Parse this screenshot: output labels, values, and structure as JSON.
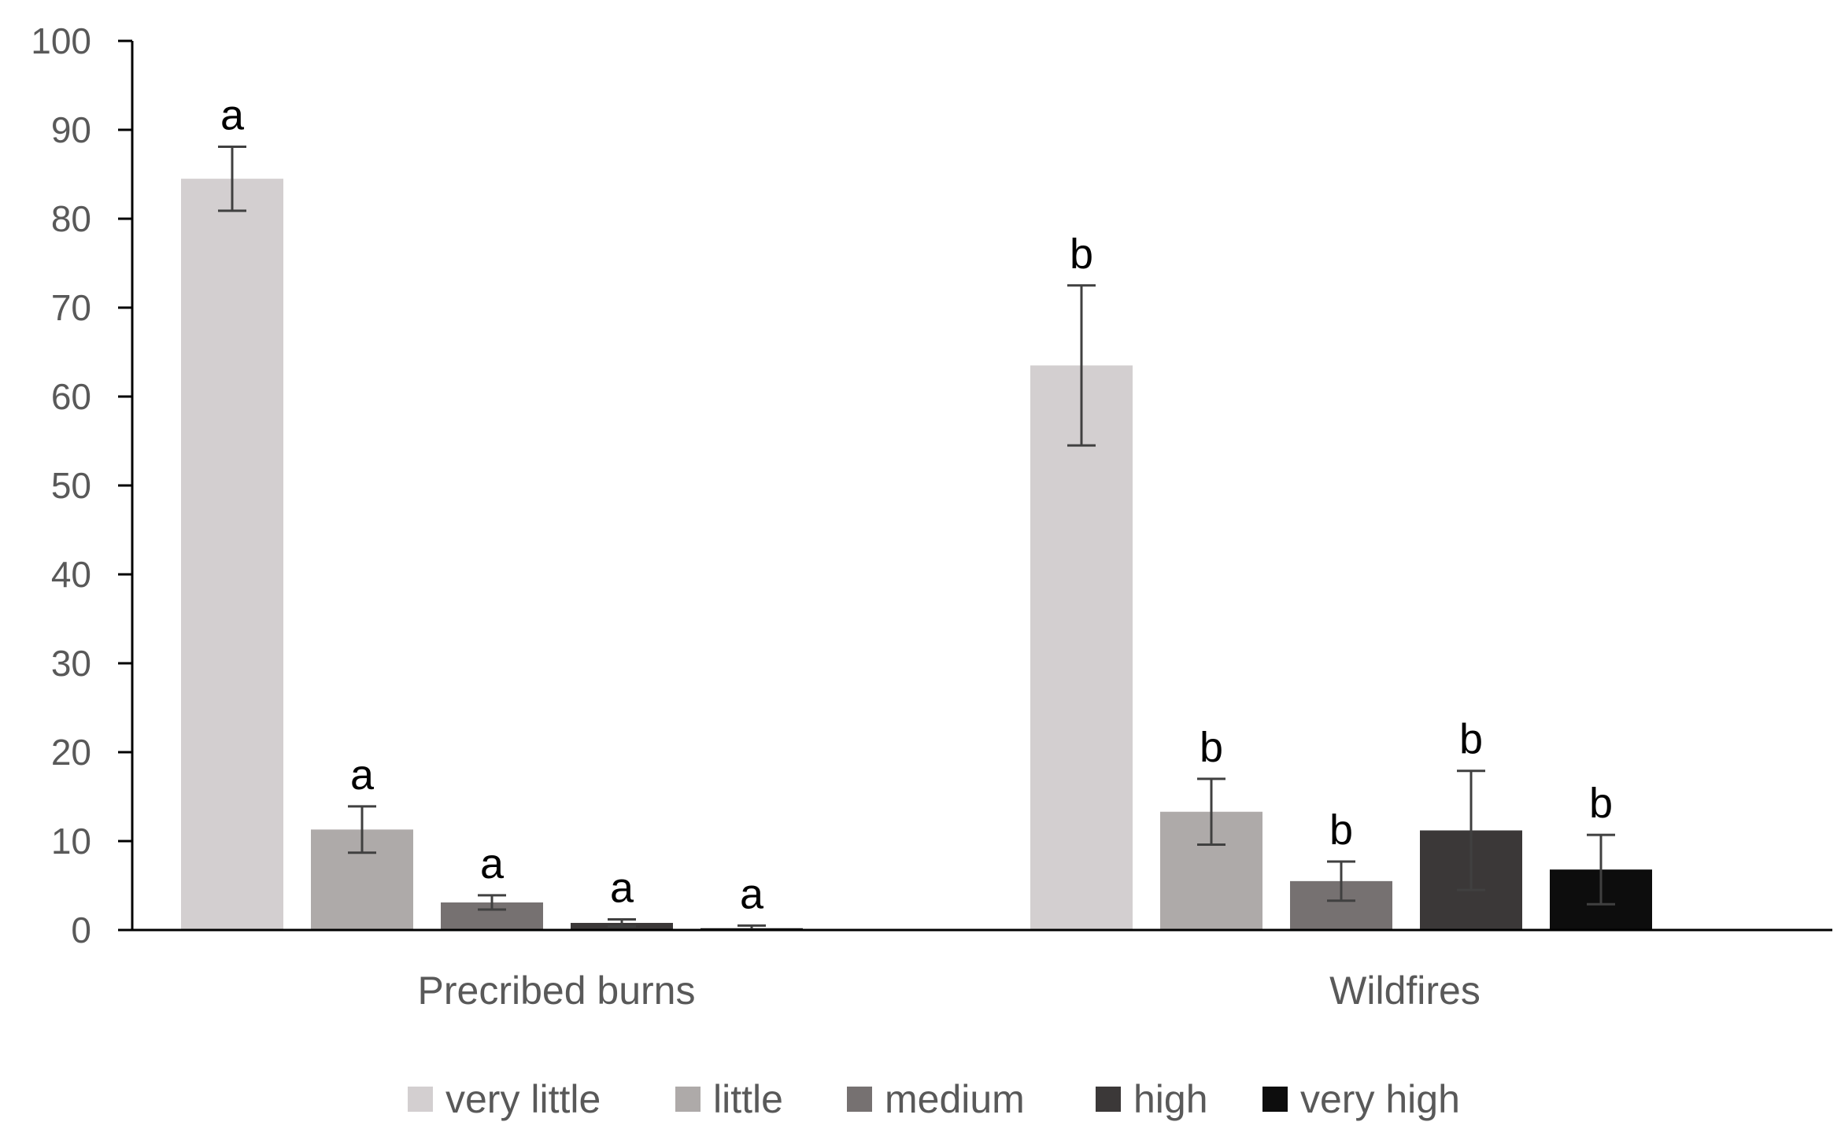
{
  "chart_data": {
    "type": "bar",
    "title": "",
    "xlabel": "",
    "ylabel": "",
    "ylim": [
      0,
      100
    ],
    "yticks": [
      0,
      10,
      20,
      30,
      40,
      50,
      60,
      70,
      80,
      90,
      100
    ],
    "categories": [
      "Precribed burns",
      "Wildfires"
    ],
    "legend_position": "bottom",
    "grid": false,
    "series": [
      {
        "name": "very little",
        "color": "#d3cfd0",
        "values": [
          84.5,
          63.5
        ],
        "errors": [
          3.6,
          9.0
        ],
        "labels": [
          "a",
          "b"
        ]
      },
      {
        "name": "little",
        "color": "#aeaaa9",
        "values": [
          11.3,
          13.3
        ],
        "errors": [
          2.6,
          3.7
        ],
        "labels": [
          "a",
          "b"
        ]
      },
      {
        "name": "medium",
        "color": "#767171",
        "values": [
          3.1,
          5.5
        ],
        "errors": [
          0.8,
          2.2
        ],
        "labels": [
          "a",
          "b"
        ]
      },
      {
        "name": "high",
        "color": "#3b3838",
        "values": [
          0.8,
          11.2
        ],
        "errors": [
          0.4,
          6.7
        ],
        "labels": [
          "a",
          "b"
        ]
      },
      {
        "name": "very high",
        "color": "#0d0d0d",
        "values": [
          0.2,
          6.8
        ],
        "errors": [
          0.3,
          3.9
        ],
        "labels": [
          "a",
          "b"
        ]
      }
    ]
  }
}
